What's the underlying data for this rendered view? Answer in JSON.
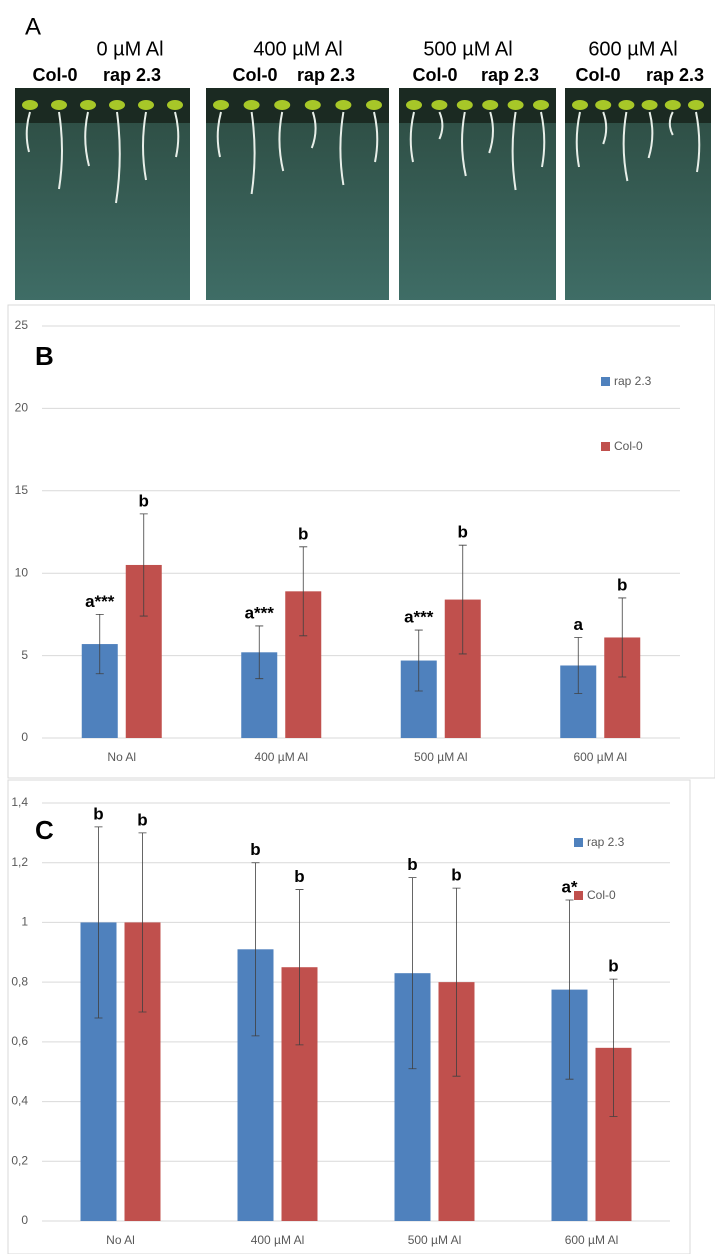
{
  "panel_a": {
    "label": "A",
    "conditions": [
      {
        "title": "0 µM Al",
        "genotypes": [
          "Col-0",
          "rap 2.3"
        ]
      },
      {
        "title": "400 µM Al",
        "genotypes": [
          "Col-0",
          "rap 2.3"
        ]
      },
      {
        "title": "500 µM Al",
        "genotypes": [
          "Col-0",
          "rap 2.3"
        ]
      },
      {
        "title": "600 µM Al",
        "genotypes": [
          "Col-0",
          "rap 2.3"
        ]
      }
    ]
  },
  "chart_data": [
    {
      "type": "bar",
      "panel_label": "B",
      "categories": [
        "No Al",
        "400 µM Al",
        "500 µM Al",
        "600 µM Al"
      ],
      "series": [
        {
          "name": "rap 2.3",
          "color": "#4f81bd",
          "values": [
            5.7,
            5.2,
            4.7,
            4.4
          ],
          "errors": [
            1.8,
            1.6,
            1.85,
            1.7
          ],
          "significance": [
            "a***",
            "a***",
            "a***",
            "a"
          ]
        },
        {
          "name": "Col-0",
          "color": "#c0504d",
          "values": [
            10.5,
            8.9,
            8.4,
            6.1
          ],
          "errors": [
            3.1,
            2.7,
            3.3,
            2.4
          ],
          "significance": [
            "b",
            "b",
            "b",
            "b"
          ]
        }
      ],
      "ylim": [
        0,
        25
      ],
      "yticks": [
        0,
        5,
        10,
        15,
        20,
        25
      ],
      "grid": true,
      "legend": "top-right"
    },
    {
      "type": "bar",
      "panel_label": "C",
      "categories": [
        "No Al",
        "400 µM Al",
        "500 µM Al",
        "600 µM Al"
      ],
      "series": [
        {
          "name": "rap 2.3",
          "color": "#4f81bd",
          "values": [
            1.0,
            0.91,
            0.83,
            0.775
          ],
          "errors": [
            0.32,
            0.29,
            0.32,
            0.3
          ],
          "significance": [
            "b",
            "b",
            "b",
            "a*"
          ]
        },
        {
          "name": "Col-0",
          "color": "#c0504d",
          "values": [
            1.0,
            0.85,
            0.8,
            0.58
          ],
          "errors": [
            0.3,
            0.26,
            0.315,
            0.23
          ],
          "significance": [
            "b",
            "b",
            "b",
            "b"
          ]
        }
      ],
      "ylim": [
        0,
        1.4
      ],
      "yticks": [
        0,
        {
          "value": 0.2,
          "label": "0,2"
        },
        {
          "value": 0.4,
          "label": "0,4"
        },
        {
          "value": 0.6,
          "label": "0,6"
        },
        {
          "value": 0.8,
          "label": "0,8"
        },
        1,
        {
          "value": 1.2,
          "label": "1,2"
        },
        {
          "value": 1.4,
          "label": "1,4"
        }
      ],
      "grid": true,
      "legend": "top-right"
    }
  ]
}
